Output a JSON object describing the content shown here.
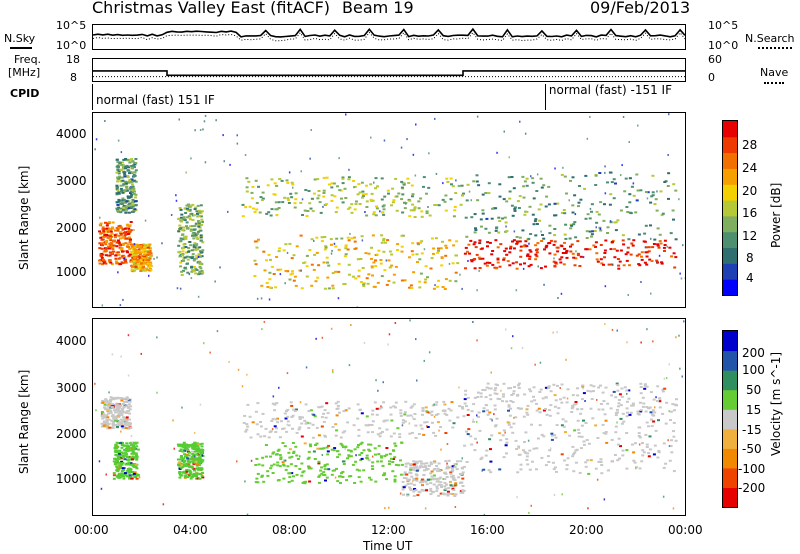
{
  "header": {
    "title": "Christmas Valley East (fitACF)",
    "beam": "Beam 19",
    "date": "09/Feb/2013"
  },
  "noise_panel": {
    "left_label": "N.Sky",
    "left_ticks": [
      "10^5",
      "10^0"
    ],
    "right_label": "N.Search",
    "right_ticks": [
      "10^5",
      "10^0"
    ],
    "legend_line_style": "dotted"
  },
  "freq_panel": {
    "left_label_line1": "Freq.",
    "left_label_line2": "[MHz]",
    "left_ticks": [
      "18",
      "8"
    ],
    "right_label": "Nave",
    "right_ticks": [
      "60",
      "0"
    ],
    "freq_steps": [
      {
        "from": 0.0,
        "to": 3.0,
        "value": 12.6
      },
      {
        "from": 3.0,
        "to": 15.0,
        "value": 10.6
      },
      {
        "from": 15.0,
        "to": 24.0,
        "value": 12.6
      }
    ],
    "nave_dotted_value": 12
  },
  "cpid": {
    "label": "CPID",
    "segments": [
      {
        "text": "normal (fast) 151 IF",
        "from": 0.0
      },
      {
        "text": "normal (fast) -151 IF",
        "from": 18.3
      }
    ]
  },
  "chart_data": [
    {
      "type": "heatmap",
      "name": "power",
      "ylabel": "Slant Range [km]",
      "xlabel": "Time UT",
      "ylim": [
        180,
        4500
      ],
      "xlim": [
        0,
        24
      ],
      "y_ticks": [
        "1000",
        "2000",
        "3000",
        "4000"
      ],
      "x_ticks": [
        "00:00",
        "04:00",
        "08:00",
        "12:00",
        "16:00",
        "20:00",
        "00:00"
      ],
      "colorbar": {
        "label": "Power [dB]",
        "ticks": [
          "28",
          "24",
          "20",
          "16",
          "12",
          "8",
          "4"
        ],
        "range": [
          0,
          30
        ],
        "colors": [
          "#0000ff",
          "#1f3fb5",
          "#2f6f6f",
          "#4d8f6f",
          "#7fae5f",
          "#b5c835",
          "#f3d000",
          "#f6a000",
          "#f27000",
          "#ee3a00",
          "#e60000"
        ]
      },
      "bands": [
        {
          "t0": 0.2,
          "t1": 1.5,
          "r0": 1150,
          "r1": 2100,
          "level": 24
        },
        {
          "t0": 1.5,
          "t1": 2.3,
          "r0": 1000,
          "r1": 1600,
          "level": 20
        },
        {
          "t0": 0.9,
          "t1": 1.7,
          "r0": 2300,
          "r1": 3500,
          "level": 10
        },
        {
          "t0": 3.4,
          "t1": 4.4,
          "r0": 900,
          "r1": 2500,
          "level": 12
        },
        {
          "t0": 6.0,
          "t1": 15.0,
          "r0": 2200,
          "r1": 3100,
          "level": 14
        },
        {
          "t0": 6.5,
          "t1": 14.8,
          "r0": 600,
          "r1": 1800,
          "level": 18
        },
        {
          "t0": 15.0,
          "t1": 23.6,
          "r0": 1050,
          "r1": 1700,
          "level": 28
        },
        {
          "t0": 15.0,
          "t1": 23.6,
          "r0": 1700,
          "r1": 3200,
          "level": 10
        }
      ]
    },
    {
      "type": "heatmap",
      "name": "velocity",
      "ylabel": "Slant Range [km]",
      "xlabel": "Time UT",
      "ylim": [
        180,
        4500
      ],
      "xlim": [
        0,
        24
      ],
      "y_ticks": [
        "1000",
        "2000",
        "3000",
        "4000"
      ],
      "x_ticks": [
        "00:00",
        "04:00",
        "08:00",
        "12:00",
        "16:00",
        "20:00",
        "00:00"
      ],
      "colorbar": {
        "label": "Velocity [m s^-1]",
        "ticks": [
          "200",
          "100",
          "50",
          "15",
          "-15",
          "-50",
          "-100",
          "-200"
        ],
        "colors": [
          "#0000cc",
          "#2255aa",
          "#2f8f5f",
          "#66cc33",
          "#c8c8c8",
          "#f0b040",
          "#f08800",
          "#ee4400",
          "#e60000"
        ]
      },
      "bands": [
        {
          "t0": 0.3,
          "t1": 1.5,
          "r0": 2100,
          "r1": 2800,
          "color": "#c8c8c8"
        },
        {
          "t0": 0.8,
          "t1": 1.8,
          "r0": 1000,
          "r1": 1800,
          "color": "#55cc33"
        },
        {
          "t0": 3.4,
          "t1": 4.4,
          "r0": 1000,
          "r1": 1800,
          "color": "#55cc33"
        },
        {
          "t0": 6.0,
          "t1": 15.0,
          "r0": 1900,
          "r1": 2700,
          "color": "#c8c8c8"
        },
        {
          "t0": 6.5,
          "t1": 12.5,
          "r0": 900,
          "r1": 1800,
          "color": "#66cc33"
        },
        {
          "t0": 12.5,
          "t1": 15.0,
          "r0": 600,
          "r1": 1400,
          "color": "#c8c8c8"
        },
        {
          "t0": 15.0,
          "t1": 23.6,
          "r0": 1100,
          "r1": 2400,
          "color": "#c8c8c8"
        },
        {
          "t0": 15.0,
          "t1": 23.6,
          "r0": 2400,
          "r1": 3100,
          "color": "#c8c8c8"
        }
      ]
    }
  ]
}
